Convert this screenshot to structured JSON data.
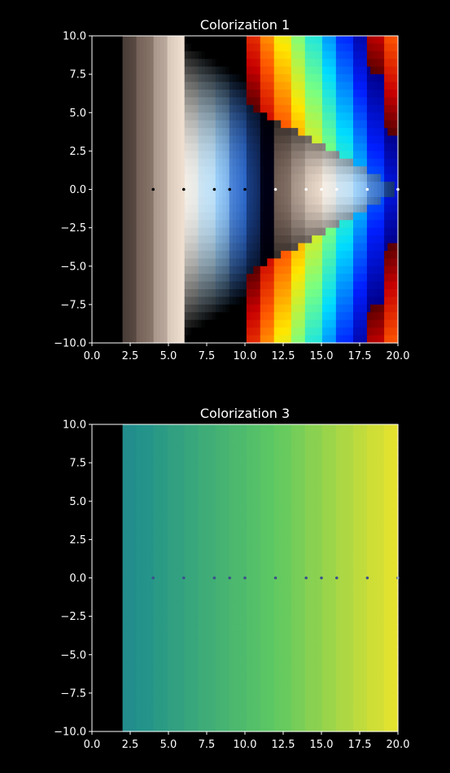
{
  "figure": {
    "background": "#000000",
    "foreground": "#ffffff"
  },
  "chart_data": [
    {
      "type": "heatmap",
      "title": "Colorization 1",
      "xlabel": "",
      "ylabel": "",
      "xlim": [
        0,
        20
      ],
      "ylim": [
        -10,
        10
      ],
      "x_ticks": [
        0.0,
        2.5,
        5.0,
        7.5,
        10.0,
        12.5,
        15.0,
        17.5,
        20.0
      ],
      "x_tick_labels": [
        "0.0",
        "2.5",
        "5.0",
        "7.5",
        "10.0",
        "12.5",
        "15.0",
        "17.5",
        "20.0"
      ],
      "y_ticks": [
        10.0,
        7.5,
        5.0,
        2.5,
        0.0,
        -2.5,
        -5.0,
        -7.5,
        -10.0
      ],
      "y_tick_labels": [
        "10.0",
        "7.5",
        "5.0",
        "2.5",
        "0.0",
        "−2.5",
        "−5.0",
        "−7.5",
        "−10.0"
      ],
      "colormap": "bone / flag-like banded colorization",
      "data_x_start": 2,
      "bands": [
        2,
        3,
        4,
        5,
        6,
        7,
        8,
        9,
        10,
        11,
        12,
        13,
        14,
        15,
        16,
        17,
        18,
        19,
        20
      ],
      "singular_points_y0": [
        4,
        6,
        8,
        9,
        10,
        12,
        14,
        15,
        16,
        18,
        20
      ]
    },
    {
      "type": "heatmap",
      "title": "Colorization 3",
      "xlabel": "",
      "ylabel": "",
      "xlim": [
        0,
        20
      ],
      "ylim": [
        -10,
        10
      ],
      "x_ticks": [
        0.0,
        2.5,
        5.0,
        7.5,
        10.0,
        12.5,
        15.0,
        17.5,
        20.0
      ],
      "x_tick_labels": [
        "0.0",
        "2.5",
        "5.0",
        "7.5",
        "10.0",
        "12.5",
        "15.0",
        "17.5",
        "20.0"
      ],
      "y_ticks": [
        10.0,
        7.5,
        5.0,
        2.5,
        0.0,
        -2.5,
        -5.0,
        -7.5,
        -10.0
      ],
      "y_tick_labels": [
        "10.0",
        "7.5",
        "5.0",
        "2.5",
        "0.0",
        "−2.5",
        "−5.0",
        "−7.5",
        "−10.0"
      ],
      "colormap": "viridis",
      "data_x_start": 2,
      "bands": [
        2,
        3,
        4,
        5,
        6,
        7,
        8,
        9,
        10,
        11,
        12,
        13,
        14,
        15,
        16,
        17,
        18,
        19,
        20
      ],
      "singular_points_y0": [
        4,
        6,
        8,
        9,
        10,
        12,
        14,
        15,
        16,
        18,
        20
      ]
    }
  ]
}
